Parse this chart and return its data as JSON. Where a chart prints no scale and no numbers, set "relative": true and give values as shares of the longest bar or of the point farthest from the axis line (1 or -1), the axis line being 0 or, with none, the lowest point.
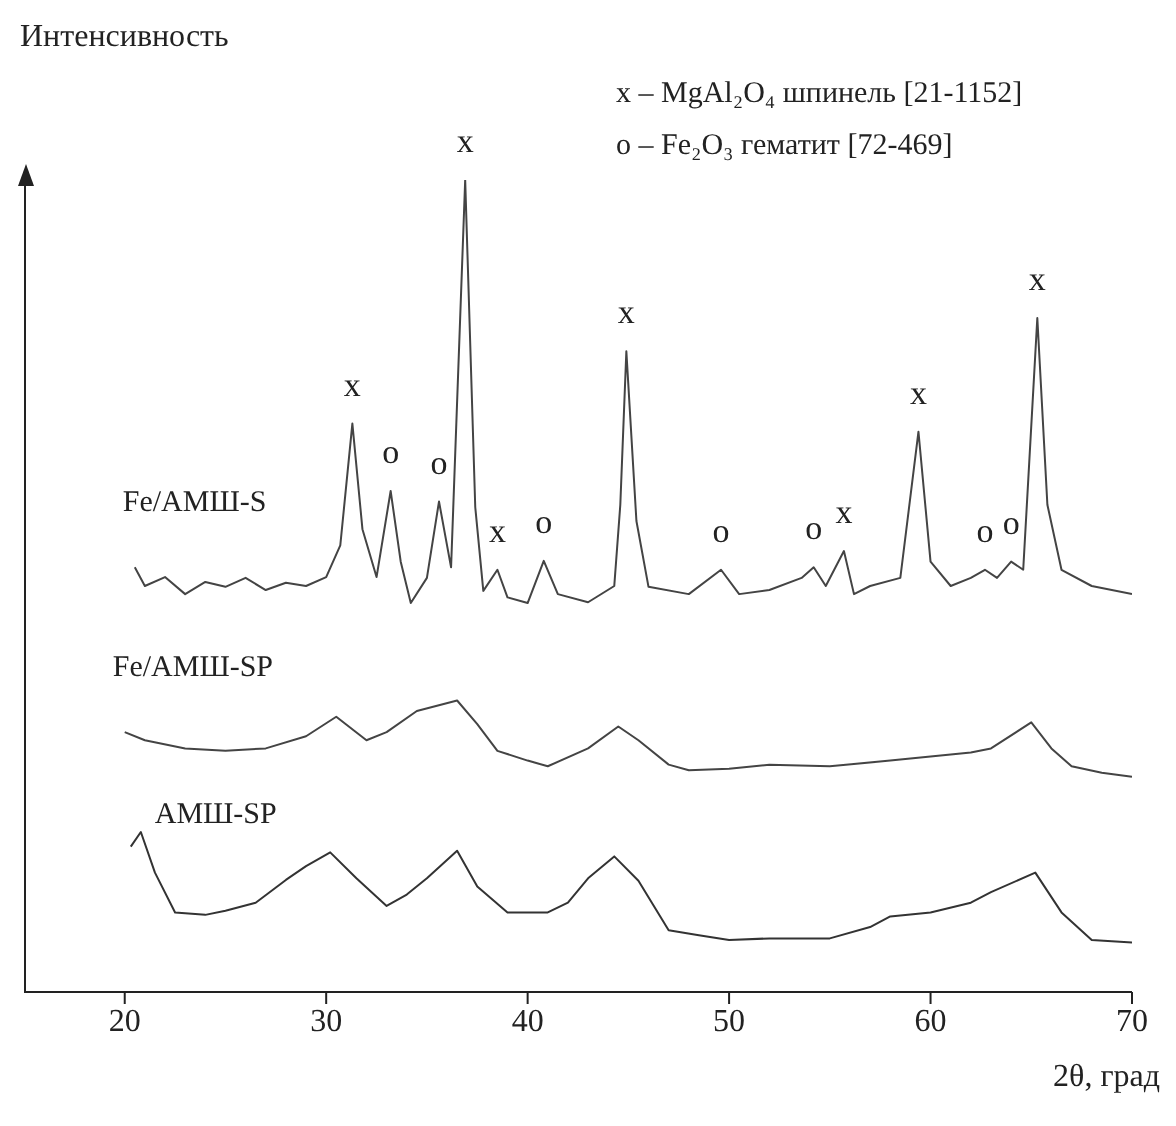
{
  "chart_data": {
    "type": "line",
    "relative": true,
    "ylabel": "Интенсивность",
    "xlabel": "2θ, град",
    "xlim": [
      15,
      70
    ],
    "xticks": [
      20,
      30,
      40,
      50,
      60,
      70
    ],
    "grid": false,
    "legend": false,
    "marker": "none",
    "line_style": "solid",
    "annotations": [
      "x – MgAl₂O₄ шпинель [21-1152]",
      "o – Fe₂O₃ гематит [72-469]",
      {
        "text": "x",
        "x": 31.3,
        "y": 0.7
      },
      {
        "text": "o",
        "x": 33.2,
        "y": 0.617
      },
      {
        "text": "o",
        "x": 35.6,
        "y": 0.604
      },
      {
        "text": "x",
        "x": 36.9,
        "y": 1.0
      },
      {
        "text": "x",
        "x": 38.5,
        "y": 0.52
      },
      {
        "text": "o",
        "x": 40.8,
        "y": 0.531
      },
      {
        "text": "x",
        "x": 44.9,
        "y": 0.789
      },
      {
        "text": "o",
        "x": 49.6,
        "y": 0.52
      },
      {
        "text": "o",
        "x": 54.2,
        "y": 0.523
      },
      {
        "text": "x",
        "x": 55.7,
        "y": 0.543
      },
      {
        "text": "x",
        "x": 59.4,
        "y": 0.69
      },
      {
        "text": "o",
        "x": 62.7,
        "y": 0.52
      },
      {
        "text": "o",
        "x": 64.0,
        "y": 0.53
      },
      {
        "text": "x",
        "x": 65.3,
        "y": 0.83
      }
    ],
    "series": [
      {
        "name": "Fe/АМШ-S",
        "color": "#444444",
        "x": [
          20.5,
          21,
          22,
          23,
          24,
          25,
          26,
          27,
          28,
          29,
          30,
          30.7,
          31.3,
          31.8,
          32.5,
          33.2,
          33.7,
          34.2,
          35,
          35.6,
          36.2,
          36.9,
          37.4,
          37.8,
          38.5,
          39,
          40,
          40.8,
          41.5,
          43,
          44.3,
          44.6,
          44.9,
          45.4,
          46,
          48,
          49.6,
          50.5,
          52,
          53.6,
          54.2,
          54.8,
          55.7,
          56.2,
          57,
          58.5,
          59.4,
          60,
          61,
          62,
          62.7,
          63.3,
          64,
          64.6,
          65.3,
          65.8,
          66.5,
          68,
          70
        ],
        "values": [
          0.523,
          0.5,
          0.511,
          0.49,
          0.505,
          0.499,
          0.51,
          0.495,
          0.504,
          0.5,
          0.511,
          0.55,
          0.7,
          0.57,
          0.511,
          0.617,
          0.53,
          0.479,
          0.51,
          0.604,
          0.523,
          1.0,
          0.597,
          0.494,
          0.52,
          0.486,
          0.479,
          0.531,
          0.49,
          0.48,
          0.5,
          0.6,
          0.789,
          0.58,
          0.499,
          0.49,
          0.52,
          0.49,
          0.495,
          0.51,
          0.523,
          0.5,
          0.543,
          0.49,
          0.5,
          0.51,
          0.69,
          0.53,
          0.5,
          0.51,
          0.52,
          0.51,
          0.53,
          0.52,
          0.83,
          0.6,
          0.52,
          0.5,
          0.49
        ]
      },
      {
        "name": "Fe/АМШ-SP",
        "color": "#444444",
        "x": [
          20,
          21,
          23,
          25,
          27,
          29,
          30.5,
          32,
          33,
          34.5,
          36.5,
          37.5,
          38.5,
          40,
          41,
          43,
          44.5,
          45.5,
          47,
          48,
          50,
          52,
          55,
          58,
          60,
          62,
          63,
          65,
          66,
          67,
          68.5,
          70
        ],
        "values": [
          0.32,
          0.31,
          0.3,
          0.297,
          0.3,
          0.315,
          0.339,
          0.31,
          0.32,
          0.346,
          0.359,
          0.33,
          0.297,
          0.285,
          0.278,
          0.3,
          0.327,
          0.31,
          0.28,
          0.273,
          0.275,
          0.28,
          0.278,
          0.285,
          0.29,
          0.295,
          0.3,
          0.332,
          0.3,
          0.278,
          0.27,
          0.265
        ]
      },
      {
        "name": "АМШ-SP",
        "color": "#333333",
        "x": [
          20.3,
          20.8,
          21.5,
          22.5,
          24,
          25,
          26.5,
          28,
          29,
          30.2,
          31.5,
          33,
          34,
          35,
          36.5,
          37.5,
          39,
          41,
          42,
          43,
          44.3,
          45.5,
          47,
          48.5,
          50,
          52,
          55,
          57,
          58,
          60,
          62,
          63,
          65.2,
          66.5,
          68,
          70
        ],
        "values": [
          0.179,
          0.197,
          0.147,
          0.098,
          0.095,
          0.1,
          0.11,
          0.138,
          0.155,
          0.172,
          0.14,
          0.106,
          0.12,
          0.14,
          0.174,
          0.13,
          0.098,
          0.098,
          0.11,
          0.14,
          0.167,
          0.137,
          0.076,
          0.07,
          0.064,
          0.066,
          0.066,
          0.08,
          0.093,
          0.098,
          0.11,
          0.123,
          0.147,
          0.098,
          0.064,
          0.061
        ]
      }
    ]
  }
}
